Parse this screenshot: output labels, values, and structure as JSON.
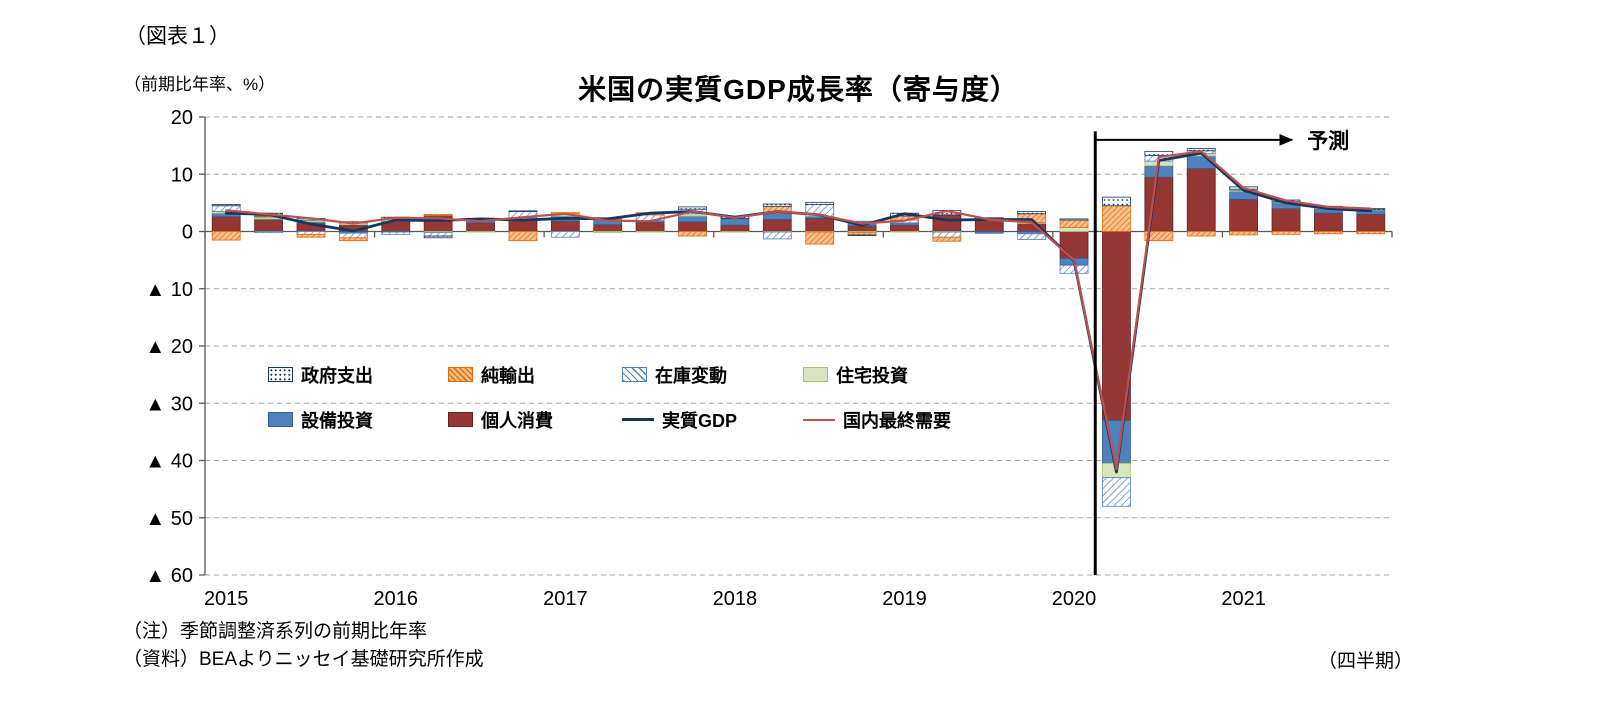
{
  "figure_label": "（図表１）",
  "notes": [
    "（注）季節調整済系列の前期比年率",
    "（資料）BEAよりニッセイ基礎研究所作成"
  ],
  "x_axis_caption": "（四半期）",
  "chart_data": {
    "type": "stacked-bar-line-combo",
    "title": "米国の実質GDP成長率（寄与度）",
    "y_axis_unit": "（前期比年率、%）",
    "x": [
      "2015Q1",
      "2015Q2",
      "2015Q3",
      "2015Q4",
      "2016Q1",
      "2016Q2",
      "2016Q3",
      "2016Q4",
      "2017Q1",
      "2017Q2",
      "2017Q3",
      "2017Q4",
      "2018Q1",
      "2018Q2",
      "2018Q3",
      "2018Q4",
      "2019Q1",
      "2019Q2",
      "2019Q3",
      "2019Q4",
      "2020Q1",
      "2020Q2",
      "2020Q3",
      "2020Q4",
      "2021Q1",
      "2021Q2",
      "2021Q3",
      "2021Q4"
    ],
    "year_labels": [
      "2015",
      "2016",
      "2017",
      "2018",
      "2019",
      "2020",
      "2021"
    ],
    "ylim": [
      -60,
      20
    ],
    "ytick_values": [
      20,
      10,
      0,
      -10,
      -20,
      -30,
      -40,
      -50,
      -60
    ],
    "ytick_labels": [
      "20",
      "10",
      "0",
      "▲ 10",
      "▲ 20",
      "▲ 30",
      "▲ 40",
      "▲ 50",
      "▲ 60"
    ],
    "grid": "horizontal-dashed",
    "colors": {
      "axis": "#595959",
      "gridline": "#A6A6A6",
      "forecast_line": "#000000"
    },
    "bar_series": [
      {
        "key": "cons",
        "name": "個人消費",
        "style": "solid",
        "color": "#953735",
        "border": "#632423",
        "values": [
          2.6,
          2.0,
          1.4,
          1.2,
          1.8,
          2.7,
          1.5,
          2.0,
          1.8,
          1.2,
          1.6,
          1.7,
          1.1,
          2.1,
          2.3,
          1.0,
          1.1,
          2.9,
          1.9,
          1.4,
          -4.7,
          -33.0,
          9.5,
          11.0,
          5.6,
          4.0,
          3.2,
          3.0
        ]
      },
      {
        "key": "equip",
        "name": "設備投資",
        "style": "solid",
        "color": "#4F81BD",
        "border": "#385D8A",
        "values": [
          0.6,
          0.2,
          0.3,
          -0.3,
          -0.1,
          0.1,
          0.3,
          0.1,
          0.9,
          0.9,
          0.3,
          1.0,
          1.1,
          1.1,
          0.3,
          0.7,
          0.4,
          0.0,
          -0.3,
          -0.4,
          -1.2,
          -7.5,
          2.0,
          2.2,
          1.4,
          1.0,
          0.8,
          0.7
        ]
      },
      {
        "key": "housing",
        "name": "住宅投資",
        "style": "solid",
        "color": "#D7E4BD",
        "border": "#A9C46C",
        "values": [
          0.3,
          0.3,
          0.3,
          0.3,
          0.4,
          -0.2,
          -0.1,
          0.3,
          0.4,
          -0.2,
          -0.1,
          0.4,
          -0.1,
          -0.1,
          -0.1,
          -0.2,
          -0.1,
          -0.1,
          0.2,
          0.2,
          0.7,
          -2.5,
          0.8,
          0.4,
          0.2,
          0.1,
          0.1,
          0.1
        ]
      },
      {
        "key": "inv",
        "name": "在庫変動",
        "style": "hatch-blue",
        "color": "#4F81BD",
        "border": "#4F81BD",
        "values": [
          1.0,
          -0.2,
          -0.5,
          -0.8,
          -0.4,
          -0.6,
          0.2,
          1.1,
          -1.0,
          0.1,
          1.0,
          0.8,
          0.1,
          -1.2,
          2.1,
          0.1,
          0.5,
          -0.9,
          0.0,
          -1.0,
          -1.4,
          -5.0,
          1.0,
          0.5,
          0.2,
          0.1,
          0.1,
          0.0
        ]
      },
      {
        "key": "netex",
        "name": "純輸出",
        "style": "hatch-orange",
        "color": "#E26B0A",
        "border": "#E26B0A",
        "values": [
          -1.5,
          0.2,
          -0.5,
          -0.5,
          0.0,
          0.2,
          0.2,
          -1.6,
          0.2,
          0.2,
          0.4,
          -0.8,
          0.0,
          1.2,
          -2.1,
          -0.4,
          0.7,
          -0.7,
          0.0,
          1.5,
          1.3,
          4.5,
          -1.6,
          -0.8,
          -0.6,
          -0.5,
          -0.4,
          -0.4
        ]
      },
      {
        "key": "gov",
        "name": "政府支出",
        "style": "dots-navy",
        "color": "#17375E",
        "border": "#17375E",
        "values": [
          0.2,
          0.5,
          0.3,
          0.2,
          0.3,
          -0.3,
          0.1,
          0.1,
          0.0,
          0.0,
          0.0,
          0.4,
          0.3,
          0.4,
          0.4,
          -0.1,
          0.5,
          0.8,
          0.3,
          0.4,
          0.2,
          1.5,
          0.7,
          0.4,
          0.4,
          0.3,
          0.2,
          0.2
        ]
      }
    ],
    "line_series": [
      {
        "key": "gdp",
        "name": "実質GDP",
        "color": "#17375E",
        "width": 2.8,
        "values": [
          3.2,
          3.0,
          1.3,
          0.1,
          2.0,
          1.9,
          2.2,
          2.0,
          2.3,
          2.2,
          3.2,
          3.5,
          2.5,
          3.5,
          2.9,
          1.1,
          3.1,
          2.0,
          2.1,
          2.1,
          -5.1,
          -42.0,
          12.4,
          13.7,
          7.2,
          5.0,
          4.0,
          3.6
        ]
      },
      {
        "key": "dfd",
        "name": "国内最終需要",
        "color": "#C0504D",
        "width": 2.2,
        "values": [
          3.7,
          3.0,
          2.3,
          1.4,
          2.4,
          2.3,
          1.8,
          2.5,
          3.1,
          1.9,
          1.8,
          3.5,
          2.4,
          3.5,
          2.9,
          1.4,
          1.9,
          3.6,
          2.1,
          1.6,
          -5.0,
          -41.5,
          13.0,
          14.0,
          7.6,
          5.4,
          4.3,
          4.0
        ]
      }
    ],
    "forecast": {
      "label": "予測",
      "boundary_index": 21
    },
    "legend": {
      "rows": [
        [
          {
            "key": "gov",
            "label": "政府支出",
            "swatch": "dots-navy"
          },
          {
            "key": "netex",
            "label": "純輸出",
            "swatch": "hatch-orange"
          },
          {
            "key": "inv",
            "label": "在庫変動",
            "swatch": "hatch-blue"
          },
          {
            "key": "housing",
            "label": "住宅投資",
            "swatch": "solid-green"
          }
        ],
        [
          {
            "key": "equip",
            "label": "設備投資",
            "swatch": "solid-blue"
          },
          {
            "key": "cons",
            "label": "個人消費",
            "swatch": "solid-darkred"
          },
          {
            "key": "gdp",
            "label": "実質GDP",
            "swatch": "line-navy"
          },
          {
            "key": "dfd",
            "label": "国内最終需要",
            "swatch": "line-red"
          }
        ]
      ]
    }
  }
}
